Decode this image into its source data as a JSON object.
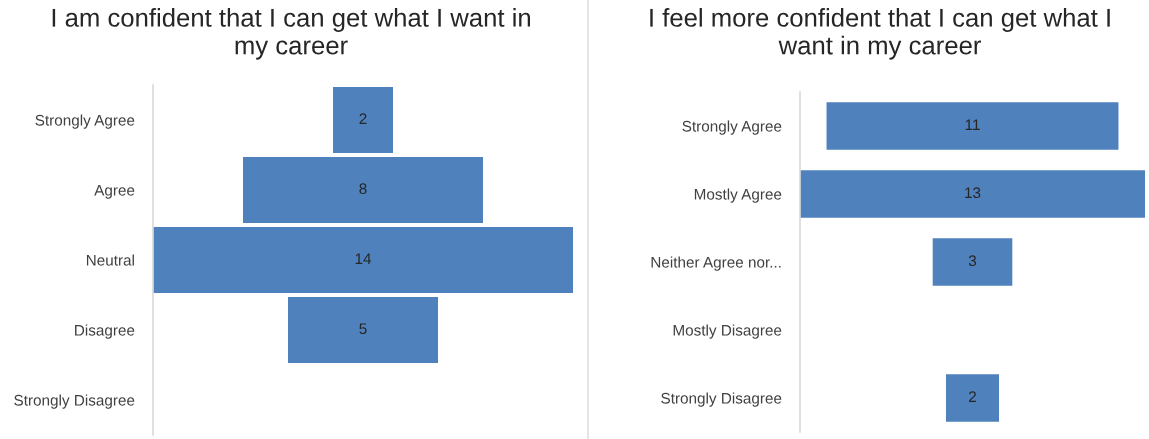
{
  "chart_data": [
    {
      "type": "other",
      "title": "I am confident that I can get what I want in my career",
      "categories": [
        "Strongly Agree",
        "Agree",
        "Neutral",
        "Disagree",
        "Strongly Disagree"
      ],
      "values": [
        2,
        8,
        14,
        5,
        null
      ],
      "color": "#4f81bd",
      "data_labels": true
    },
    {
      "type": "other",
      "title": "I feel more confident that I can get what I want in my career",
      "categories": [
        "Strongly Agree",
        "Mostly Agree",
        "Neither Agree nor...",
        "Mostly Disagree",
        "Strongly Disagree"
      ],
      "values": [
        11,
        13,
        3,
        null,
        2
      ],
      "color": "#4f81bd",
      "data_labels": true
    }
  ]
}
